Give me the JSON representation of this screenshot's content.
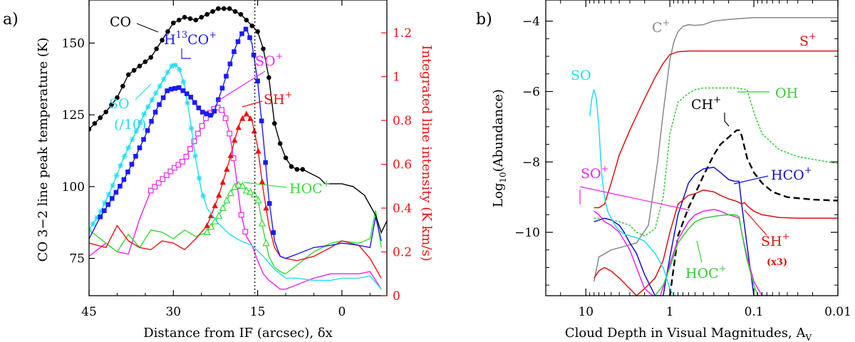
{
  "chart_data": [
    {
      "type": "line",
      "panel_label": "a)",
      "xlabel": "Distance from IF (arcsec), δx",
      "ylabel_left": "CO 3−2 line peak temperature (K)",
      "ylabel_right": "Integrated line intensity (K km/s)",
      "xlim": [
        45,
        -8
      ],
      "ylim_left": [
        62,
        165
      ],
      "ylim_right": [
        0,
        1.35
      ],
      "xticks": [
        45,
        30,
        15,
        0
      ],
      "yticks_left": [
        75,
        100,
        125,
        150
      ],
      "yticks_right": [
        0,
        0.2,
        0.4,
        0.6,
        0.8,
        1,
        1.2
      ],
      "vline_x": 15.5,
      "colors": {
        "CO": "#000000",
        "H13CO+": "#1a1aff",
        "SO": "#22ddee",
        "SO+": "#ee22ee",
        "SH+": "#ee1111",
        "HOC+": "#33dd33",
        "right_axis": "#ee1111"
      },
      "series": [
        {
          "name": "CO",
          "axis": "left",
          "marker": "circle",
          "color": "#000000",
          "x": [
            45,
            42,
            40,
            38,
            36,
            34,
            32,
            30,
            28,
            26,
            24,
            22,
            20,
            18,
            16,
            15,
            14,
            13,
            12,
            11,
            10,
            9,
            8,
            7,
            6,
            5,
            4,
            3,
            2,
            1,
            0,
            -2,
            -4,
            -6,
            -7,
            -8
          ],
          "y": [
            120,
            126,
            131,
            139,
            142,
            145,
            151,
            157,
            159,
            158,
            160,
            162,
            162,
            160,
            156,
            154,
            148,
            138,
            122,
            115,
            110,
            107,
            106,
            106,
            105,
            104,
            103,
            101,
            101,
            101,
            101,
            100,
            97,
            90,
            84,
            88
          ]
        },
        {
          "name": "H13CO+",
          "axis": "right",
          "marker": "square",
          "color": "#1a1aff",
          "x": [
            45,
            43,
            41,
            39,
            37,
            35,
            33,
            31,
            29,
            27,
            25,
            23,
            21,
            19,
            18,
            17,
            16,
            15,
            14,
            13,
            12,
            11,
            10,
            8,
            5,
            2,
            0,
            -3,
            -5,
            -6,
            -7
          ],
          "y": [
            0.26,
            0.36,
            0.44,
            0.52,
            0.62,
            0.73,
            0.85,
            0.94,
            0.95,
            0.91,
            0.84,
            0.82,
            0.97,
            1.13,
            1.19,
            1.22,
            1.15,
            0.98,
            0.72,
            0.44,
            0.25,
            0.18,
            0.17,
            0.19,
            0.22,
            0.23,
            0.24,
            0.23,
            0.22,
            0.36,
            0.25
          ]
        },
        {
          "name": "SO",
          "axis": "right",
          "marker": "star",
          "color": "#22ddee",
          "label": "SO",
          "x": [
            45,
            43,
            41,
            39,
            37,
            35,
            33,
            31,
            30,
            29,
            28,
            27,
            26,
            25,
            24,
            22,
            20,
            18,
            16,
            14,
            12,
            10,
            8,
            5,
            2,
            0,
            -3,
            -5,
            -7
          ],
          "y": [
            0.3,
            0.38,
            0.49,
            0.62,
            0.73,
            0.84,
            0.93,
            1.02,
            1.06,
            1.04,
            0.96,
            0.8,
            0.62,
            0.48,
            0.4,
            0.33,
            0.28,
            0.25,
            0.23,
            0.18,
            0.12,
            0.08,
            0.08,
            0.07,
            0.07,
            0.08,
            0.08,
            0.09,
            0.03
          ]
        },
        {
          "name": "SO+",
          "axis": "right",
          "marker": "square-open",
          "color": "#ee22ee",
          "x": [
            45,
            42,
            40,
            38,
            36,
            34,
            32,
            30,
            28,
            26,
            24,
            23,
            22,
            21,
            20,
            19,
            18,
            17,
            16,
            15,
            14,
            13,
            12,
            11,
            10,
            8,
            5,
            2,
            0,
            -3,
            -5,
            -7
          ],
          "y": [
            0.18,
            0.24,
            0.2,
            0.19,
            0.35,
            0.48,
            0.53,
            0.58,
            0.62,
            0.72,
            0.82,
            0.85,
            0.86,
            0.84,
            0.74,
            0.58,
            0.38,
            0.27,
            0.23,
            0.16,
            0.1,
            0.07,
            0.05,
            0.03,
            0.03,
            0.05,
            0.08,
            0.1,
            0.1,
            0.1,
            0.11,
            0.03
          ]
        },
        {
          "name": "SH+",
          "axis": "right",
          "marker": "triangle",
          "color": "#ee1111",
          "x": [
            45,
            42,
            40,
            38,
            36,
            34,
            32,
            30,
            28,
            26,
            24,
            22,
            20,
            19,
            18,
            17,
            16,
            15,
            14,
            13,
            12,
            11,
            10,
            8,
            5,
            2,
            0,
            -3,
            -5,
            -7
          ],
          "y": [
            0.24,
            0.22,
            0.32,
            0.25,
            0.22,
            0.21,
            0.25,
            0.24,
            0.21,
            0.26,
            0.32,
            0.45,
            0.62,
            0.72,
            0.8,
            0.83,
            0.8,
            0.68,
            0.48,
            0.32,
            0.22,
            0.18,
            0.17,
            0.16,
            0.18,
            0.22,
            0.25,
            0.23,
            0.17,
            0.08
          ]
        },
        {
          "name": "HOC+",
          "axis": "right",
          "marker": "triangle-open",
          "color": "#33dd33",
          "x": [
            45,
            42,
            40,
            38,
            36,
            34,
            32,
            30,
            28,
            26,
            24,
            22,
            20,
            19,
            18,
            17,
            16,
            15,
            14,
            13,
            12,
            11,
            10,
            8,
            5,
            2,
            0,
            -3,
            -5,
            -6,
            -7
          ],
          "y": [
            0.3,
            0.24,
            0.2,
            0.28,
            0.22,
            0.3,
            0.29,
            0.26,
            0.3,
            0.27,
            0.29,
            0.36,
            0.46,
            0.5,
            0.51,
            0.48,
            0.47,
            0.45,
            0.3,
            0.18,
            0.13,
            0.11,
            0.1,
            0.14,
            0.2,
            0.24,
            0.25,
            0.24,
            0.26,
            0.39,
            0.22
          ]
        }
      ],
      "annotations": {
        "CO": "CO",
        "H13": "H",
        "H13_sup": "13",
        "H13_co": "CO",
        "H13_plus": "+",
        "SO_a": "SO",
        "SO_scale": "(/10)",
        "SOp": "SO",
        "SHp": "SH",
        "HOCp": "HOC",
        "plus": "+"
      }
    },
    {
      "type": "line",
      "panel_label": "b)",
      "xlabel": "Cloud Depth in Visual Magnitudes, A",
      "xlabel_sub": "V",
      "ylabel": "Log10(Abundance)",
      "ylabel_main": "Log",
      "ylabel_sub": "10",
      "ylabel_rest": "(Abundance)",
      "x_scale": "log-reversed",
      "xlim": [
        30,
        0.01
      ],
      "ylim": [
        -11.8,
        -3.4
      ],
      "xticks": [
        10,
        1,
        0.1,
        0.01
      ],
      "xtick_labels": [
        "10",
        "1",
        "0.1",
        "0.01"
      ],
      "yticks": [
        -4,
        -6,
        -8,
        -10
      ],
      "ytick_labels": [
        "−4",
        "−6",
        "−8",
        "−10"
      ],
      "series": [
        {
          "name": "C+",
          "color": "#888888",
          "dash": false,
          "x": [
            8,
            7,
            5,
            3.5,
            2.5,
            1.8,
            1.4,
            1.2,
            1.0,
            0.9,
            0.8,
            0.7,
            0.6,
            0.5,
            0.4,
            0.3,
            0.2,
            0.1,
            0.05,
            0.02,
            0.01
          ],
          "y": [
            -11.4,
            -10.7,
            -10.5,
            -10.4,
            -10.3,
            -9.8,
            -8.0,
            -6.6,
            -5.1,
            -4.6,
            -4.3,
            -4.15,
            -4.1,
            -4.12,
            -4.1,
            -4.0,
            -3.95,
            -3.9,
            -3.9,
            -3.9,
            -3.9
          ]
        },
        {
          "name": "S+",
          "color": "#dd1111",
          "dash": false,
          "x": [
            8,
            7,
            6,
            5,
            4,
            3,
            2,
            1.5,
            1.2,
            1.0,
            0.8,
            0.6,
            0.4,
            0.2,
            0.1,
            0.05,
            0.01
          ],
          "y": [
            -9.3,
            -9.3,
            -9.2,
            -8.6,
            -7.8,
            -7.1,
            -6.2,
            -5.6,
            -5.2,
            -4.95,
            -4.87,
            -4.85,
            -4.85,
            -4.85,
            -4.85,
            -4.85,
            -4.85
          ]
        },
        {
          "name": "OH",
          "color": "#33cc33",
          "dash": "3,2",
          "x": [
            8,
            6,
            4,
            3,
            2.5,
            2,
            1.5,
            1.2,
            1.0,
            0.8,
            0.6,
            0.5,
            0.4,
            0.3,
            0.2,
            0.16,
            0.12,
            0.1,
            0.08,
            0.05,
            0.03,
            0.01
          ],
          "y": [
            -9.6,
            -9.6,
            -9.7,
            -9.8,
            -10.0,
            -10.1,
            -9.9,
            -9.0,
            -7.2,
            -6.3,
            -6.05,
            -5.95,
            -5.9,
            -5.9,
            -5.9,
            -5.9,
            -5.95,
            -6.6,
            -7.2,
            -7.65,
            -7.85,
            -8.05
          ]
        },
        {
          "name": "CH+",
          "color": "#000000",
          "dash": "9,5",
          "x": [
            1.0,
            0.8,
            0.6,
            0.5,
            0.4,
            0.3,
            0.25,
            0.2,
            0.18,
            0.16,
            0.15,
            0.14,
            0.12,
            0.1,
            0.08,
            0.06,
            0.04,
            0.02,
            0.01
          ],
          "y": [
            -11.8,
            -10.1,
            -9.3,
            -8.9,
            -8.4,
            -7.8,
            -7.5,
            -7.3,
            -7.2,
            -7.1,
            -7.1,
            -7.25,
            -7.9,
            -8.3,
            -8.6,
            -8.85,
            -9.0,
            -9.07,
            -9.1
          ]
        },
        {
          "name": "HCO+",
          "color": "#1111cc",
          "dash": false,
          "x": [
            8,
            6,
            5,
            4,
            3.5,
            3,
            2.5,
            2,
            1.5,
            1.2,
            1.0,
            0.8,
            0.6,
            0.5,
            0.4,
            0.3,
            0.25,
            0.2,
            0.17,
            0.15,
            0.14,
            0.12,
            0.1,
            0.08,
            0.06
          ],
          "y": [
            -9.7,
            -9.6,
            -9.65,
            -9.8,
            -10.0,
            -10.3,
            -10.6,
            -11.2,
            -11.8,
            -11.8,
            -10.7,
            -9.5,
            -8.6,
            -8.35,
            -8.2,
            -8.15,
            -8.3,
            -8.5,
            -8.55,
            -8.55,
            -9.2,
            -10.4,
            -11.8,
            -11.8,
            -11.8
          ]
        },
        {
          "name": "SH+",
          "color": "#dd1111",
          "dash": false,
          "x": [
            8,
            7,
            6,
            5,
            4,
            3,
            2.5,
            2,
            1.5,
            1.2,
            1.0,
            0.8,
            0.6,
            0.5,
            0.4,
            0.3,
            0.25,
            0.2,
            0.17,
            0.15,
            0.14,
            0.13,
            0.12,
            0.1,
            0.08,
            0.05,
            0.03,
            0.01
          ],
          "y": [
            -11.3,
            -11.1,
            -11.0,
            -11.1,
            -11.3,
            -11.6,
            -11.8,
            -11.6,
            -11.3,
            -10.8,
            -10.0,
            -9.2,
            -8.95,
            -8.9,
            -8.8,
            -8.85,
            -8.95,
            -9.05,
            -9.1,
            -9.15,
            -9.2,
            -9.15,
            -9.25,
            -9.4,
            -9.5,
            -9.58,
            -9.6,
            -9.6
          ]
        },
        {
          "name": "SO+",
          "color": "#ee22ee",
          "dash": false,
          "x": [
            8,
            7,
            6,
            5,
            4,
            3,
            2.5,
            2,
            1.6,
            1.3,
            1.1,
            1.0,
            0.8,
            0.6,
            0.5,
            0.4,
            0.3,
            0.25,
            0.2,
            0.17,
            0.15,
            0.14,
            0.12,
            0.1,
            0.08,
            0.06
          ],
          "y": [
            -9.4,
            -9.5,
            -9.7,
            -9.8,
            -10.0,
            -10.5,
            -11.0,
            -11.6,
            -11.8,
            -11.8,
            -11.3,
            -10.9,
            -10.2,
            -9.7,
            -9.5,
            -9.4,
            -9.35,
            -9.4,
            -9.5,
            -9.55,
            -9.6,
            -10.0,
            -10.7,
            -11.4,
            -11.8,
            -11.8
          ]
        },
        {
          "name": "HOC+",
          "color": "#33cc33",
          "dash": false,
          "x": [
            1.5,
            1.2,
            1.0,
            0.8,
            0.6,
            0.5,
            0.4,
            0.3,
            0.25,
            0.2,
            0.17,
            0.15,
            0.14,
            0.12,
            0.1,
            0.09
          ],
          "y": [
            -11.8,
            -11.5,
            -11.0,
            -10.3,
            -9.9,
            -9.7,
            -9.6,
            -9.55,
            -9.52,
            -9.5,
            -9.5,
            -9.55,
            -10.0,
            -10.8,
            -11.5,
            -11.8
          ]
        },
        {
          "name": "SO",
          "color": "#22ddee",
          "dash": false,
          "x": [
            9,
            8.5,
            8,
            7.5,
            7,
            6.5,
            6,
            5.5,
            5,
            4.5,
            4,
            3.5,
            3,
            2.5,
            2,
            1.5,
            1.2,
            1.0,
            0.9,
            0.8
          ],
          "y": [
            -6.7,
            -6.2,
            -5.95,
            -6.2,
            -7.0,
            -8.3,
            -9.0,
            -9.4,
            -9.6,
            -9.8,
            -9.95,
            -10.05,
            -10.1,
            -10.15,
            -10.25,
            -10.6,
            -11.0,
            -11.6,
            -11.8,
            -11.8
          ]
        }
      ],
      "labels": {
        "Cp": "C",
        "SP": "S",
        "SO": "SO",
        "OH": "OH",
        "CHp": "CH",
        "HCOp": "HCO",
        "SOp": "SO",
        "SHp": "SH",
        "x3": "(x3)",
        "HOCp": "HOC",
        "plus": "+"
      }
    }
  ]
}
